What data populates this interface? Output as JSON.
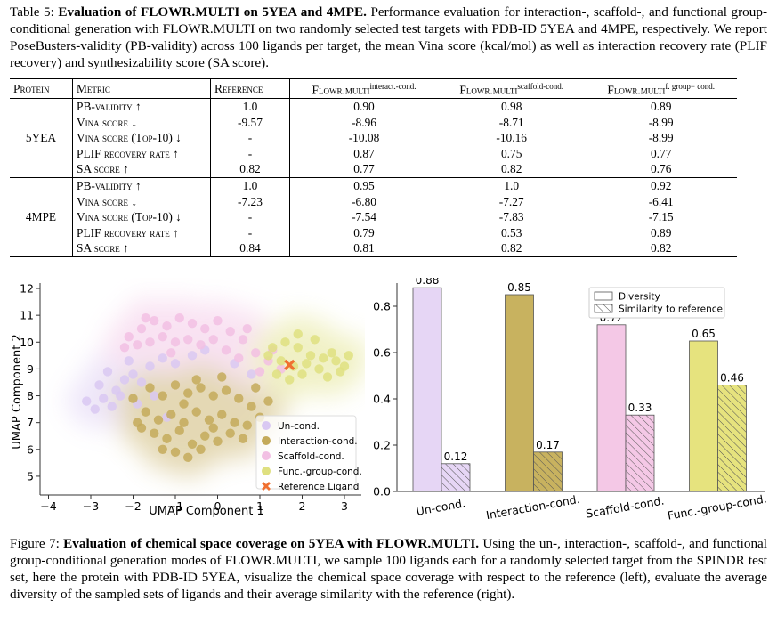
{
  "table_caption": {
    "label": "Table 5:",
    "bold_title": "Evaluation of FLOWR.MULTI on 5YEA and 4MPE.",
    "body": "Performance evaluation for interaction-, scaffold-, and functional group-conditional generation with FLOWR.MULTI on two randomly selected test targets with PDB-ID 5YEA and 4MPE, respectively. We report PoseBusters-validity (PB-validity) across 100 ligands per target, the mean Vina score (kcal/mol) as well as interaction recovery rate (PLIF recovery) and synthesizability score (SA score)."
  },
  "table": {
    "headers": {
      "protein": "Protein",
      "metric": "Metric",
      "reference": "Reference",
      "c1_base": "Flowr.multi",
      "c1_sup": "interact.-cond.",
      "c2_base": "Flowr.multi",
      "c2_sup": "scaffold-cond.",
      "c3_base": "Flowr.multi",
      "c3_sup": "f. group− cond."
    },
    "groups": [
      {
        "protein": "5YEA",
        "rows": [
          {
            "metric": "PB-validity ↑",
            "reference": "1.0",
            "interact": "0.90",
            "scaffold": "0.98",
            "fgroup": "0.89"
          },
          {
            "metric": "Vina score ↓",
            "reference": "-9.57",
            "interact": "-8.96",
            "scaffold": "-8.71",
            "fgroup": "-8.99"
          },
          {
            "metric": "Vina score (Top-10) ↓",
            "reference": "-",
            "interact": "-10.08",
            "scaffold": "-10.16",
            "fgroup": "-8.99"
          },
          {
            "metric": "PLIF recovery rate ↑",
            "reference": "-",
            "interact": "0.87",
            "scaffold": "0.75",
            "fgroup": "0.77"
          },
          {
            "metric": "SA score ↑",
            "reference": "0.82",
            "interact": "0.77",
            "scaffold": "0.82",
            "fgroup": "0.76"
          }
        ]
      },
      {
        "protein": "4MPE",
        "rows": [
          {
            "metric": "PB-validity ↑",
            "reference": "1.0",
            "interact": "0.95",
            "scaffold": "1.0",
            "fgroup": "0.92"
          },
          {
            "metric": "Vina score ↓",
            "reference": "-7.23",
            "interact": "-6.80",
            "scaffold": "-7.27",
            "fgroup": "-6.41"
          },
          {
            "metric": "Vina score (Top-10) ↓",
            "reference": "-",
            "interact": "-7.54",
            "scaffold": "-7.83",
            "fgroup": "-7.15"
          },
          {
            "metric": "PLIF recovery rate ↑",
            "reference": "-",
            "interact": "0.79",
            "scaffold": "0.53",
            "fgroup": "0.89"
          },
          {
            "metric": "SA score ↑",
            "reference": "0.84",
            "interact": "0.81",
            "scaffold": "0.82",
            "fgroup": "0.82"
          }
        ]
      }
    ]
  },
  "chart_data": [
    {
      "type": "scatter",
      "xlabel": "UMAP Component 1",
      "ylabel": "UMAP Component 2",
      "xlim": [
        -4.2,
        3.4
      ],
      "ylim": [
        4.4,
        12.2
      ],
      "xticks": [
        "−4",
        "−3",
        "−2",
        "−1",
        "0",
        "1",
        "2",
        "3"
      ],
      "yticks": [
        "5",
        "6",
        "7",
        "8",
        "9",
        "10",
        "11",
        "12"
      ],
      "legend_position": "bottom-right",
      "series": [
        {
          "name": "Un-cond.",
          "color": "#d9c8f2",
          "points": [
            [
              -2.9,
              7.5
            ],
            [
              -2.7,
              7.9
            ],
            [
              -2.4,
              8.2
            ],
            [
              -2.2,
              8.6
            ],
            [
              -2.0,
              8.8
            ],
            [
              -1.8,
              8.5
            ],
            [
              -2.5,
              7.6
            ],
            [
              -1.6,
              9.1
            ],
            [
              -2.1,
              9.3
            ],
            [
              -1.3,
              9.4
            ],
            [
              -1.0,
              9.2
            ],
            [
              -2.6,
              8.9
            ],
            [
              -1.9,
              7.7
            ],
            [
              -0.6,
              9.5
            ],
            [
              -0.3,
              9.7
            ],
            [
              0.4,
              9.2
            ],
            [
              0.8,
              8.8
            ],
            [
              -2.3,
              8.0
            ],
            [
              -2.8,
              8.4
            ],
            [
              -1.5,
              8.0
            ],
            [
              -3.1,
              7.8
            ],
            [
              -1.2,
              7.2
            ]
          ]
        },
        {
          "name": "Interaction-cond.",
          "color": "#c4aa5a",
          "points": [
            [
              -1.6,
              8.3
            ],
            [
              -1.3,
              8.0
            ],
            [
              -1.0,
              8.4
            ],
            [
              -0.7,
              8.1
            ],
            [
              -0.4,
              8.3
            ],
            [
              -0.1,
              8.0
            ],
            [
              0.2,
              8.2
            ],
            [
              0.5,
              7.9
            ],
            [
              0.8,
              7.6
            ],
            [
              -1.7,
              7.4
            ],
            [
              -1.4,
              7.1
            ],
            [
              -1.1,
              7.3
            ],
            [
              -0.8,
              7.0
            ],
            [
              -0.5,
              7.4
            ],
            [
              -0.2,
              7.1
            ],
            [
              0.1,
              7.3
            ],
            [
              0.4,
              7.0
            ],
            [
              0.7,
              6.9
            ],
            [
              1.0,
              7.2
            ],
            [
              -1.5,
              6.6
            ],
            [
              -1.2,
              6.4
            ],
            [
              -0.9,
              6.7
            ],
            [
              -0.6,
              6.2
            ],
            [
              -0.3,
              6.5
            ],
            [
              0.0,
              6.3
            ],
            [
              0.3,
              6.6
            ],
            [
              0.6,
              6.4
            ],
            [
              -1.0,
              5.9
            ],
            [
              -0.7,
              5.7
            ],
            [
              -0.4,
              6.0
            ],
            [
              -1.9,
              7.0
            ],
            [
              -2.0,
              7.9
            ],
            [
              -1.8,
              6.8
            ],
            [
              -0.5,
              8.6
            ],
            [
              0.1,
              8.7
            ],
            [
              0.9,
              8.3
            ],
            [
              1.2,
              7.8
            ],
            [
              -1.3,
              6.0
            ],
            [
              -0.1,
              6.8
            ],
            [
              -0.8,
              7.7
            ]
          ]
        },
        {
          "name": "Scaffold-cond.",
          "color": "#f2c0e3",
          "points": [
            [
              -2.1,
              10.2
            ],
            [
              -1.8,
              10.5
            ],
            [
              -1.5,
              10.8
            ],
            [
              -1.2,
              10.6
            ],
            [
              -0.9,
              10.9
            ],
            [
              -0.6,
              10.7
            ],
            [
              -0.3,
              10.5
            ],
            [
              0.0,
              10.8
            ],
            [
              0.3,
              10.4
            ],
            [
              0.6,
              10.1
            ],
            [
              -1.9,
              9.9
            ],
            [
              -1.6,
              10.0
            ],
            [
              -1.3,
              10.2
            ],
            [
              -1.0,
              10.0
            ],
            [
              -0.7,
              10.1
            ],
            [
              -0.4,
              9.9
            ],
            [
              -0.1,
              10.1
            ],
            [
              0.2,
              9.7
            ],
            [
              0.5,
              9.4
            ],
            [
              0.9,
              9.6
            ],
            [
              1.2,
              9.3
            ],
            [
              1.5,
              9.0
            ],
            [
              -2.2,
              9.8
            ],
            [
              -1.1,
              9.6
            ],
            [
              0.7,
              10.5
            ],
            [
              -1.7,
              10.9
            ],
            [
              1.0,
              8.9
            ],
            [
              1.3,
              9.7
            ]
          ]
        },
        {
          "name": "Func.-group-cond.",
          "color": "#dfe080",
          "points": [
            [
              1.3,
              9.8
            ],
            [
              1.6,
              10.0
            ],
            [
              1.9,
              9.8
            ],
            [
              2.2,
              9.5
            ],
            [
              2.5,
              9.4
            ],
            [
              2.8,
              9.3
            ],
            [
              1.5,
              9.3
            ],
            [
              1.8,
              9.1
            ],
            [
              2.1,
              9.2
            ],
            [
              2.4,
              9.0
            ],
            [
              2.7,
              9.6
            ],
            [
              3.0,
              9.1
            ],
            [
              1.4,
              8.8
            ],
            [
              1.7,
              8.6
            ],
            [
              2.0,
              8.8
            ],
            [
              2.6,
              8.7
            ],
            [
              2.3,
              10.1
            ],
            [
              1.9,
              10.3
            ],
            [
              3.1,
              9.5
            ],
            [
              1.2,
              9.5
            ],
            [
              2.9,
              8.9
            ]
          ]
        }
      ],
      "reference_ligand": {
        "name": "Reference Ligand",
        "x": 1.7,
        "y": 9.15,
        "color": "#f07030"
      }
    },
    {
      "type": "bar",
      "categories": [
        "Un-cond.",
        "Interaction-cond.",
        "Scaffold-cond.",
        "Func.-group-cond."
      ],
      "category_colors": [
        "#e6d6f5",
        "#c8b25f",
        "#f4c8e6",
        "#e6e37e"
      ],
      "ylim": [
        0,
        0.9
      ],
      "yticks": [
        "0.0",
        "0.2",
        "0.4",
        "0.6",
        "0.8"
      ],
      "legend_position": "top-right",
      "series": [
        {
          "name": "Diversity",
          "hatch": false,
          "values": [
            0.88,
            0.85,
            0.72,
            0.65
          ],
          "labels": [
            "0.88",
            "0.85",
            "0.72",
            "0.65"
          ]
        },
        {
          "name": "Similarity to reference",
          "hatch": true,
          "values": [
            0.12,
            0.17,
            0.33,
            0.46
          ],
          "labels": [
            "0.12",
            "0.17",
            "0.33",
            "0.46"
          ]
        }
      ]
    }
  ],
  "figure_caption": {
    "label": "Figure 7:",
    "bold_title": "Evaluation of chemical space coverage on 5YEA with FLOWR.MULTI.",
    "body": "Using the un-, interaction-, scaffold-, and functional group-conditional generation modes of FLOWR.MULTI, we sample 100 ligands each for a randomly selected target from the SPINDR test set, here the protein with PDB-ID 5YEA, visualize the chemical space coverage with respect to the reference (left), evaluate the average diversity of the sampled sets of ligands and their average similarity with the reference (right)."
  }
}
